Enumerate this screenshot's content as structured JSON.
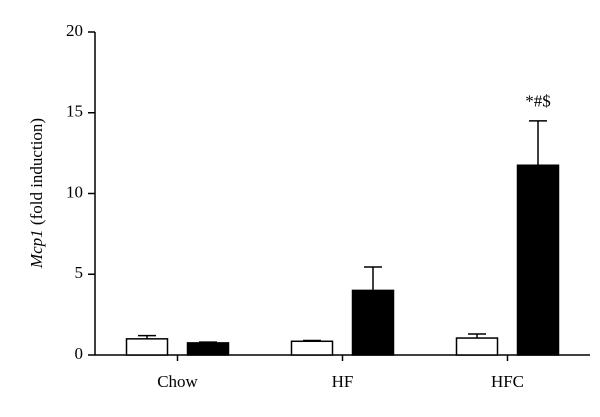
{
  "chart_data": {
    "type": "bar",
    "ylabel": {
      "italic": "Mcp1",
      "text": "(fold induction)"
    },
    "categories": [
      "Chow",
      "HF",
      "HFC"
    ],
    "series": [
      {
        "color": "#ffffff",
        "values": [
          1.0,
          0.85,
          1.05
        ],
        "errors": [
          0.2,
          0.05,
          0.25
        ]
      },
      {
        "color": "#000000",
        "values": [
          0.75,
          4.0,
          11.75
        ],
        "errors": [
          0.05,
          1.45,
          2.75
        ]
      }
    ],
    "annotation": "*#$",
    "ylim": [
      0,
      20
    ],
    "yticks": [
      0,
      5,
      10,
      15,
      20
    ],
    "grid": false
  }
}
